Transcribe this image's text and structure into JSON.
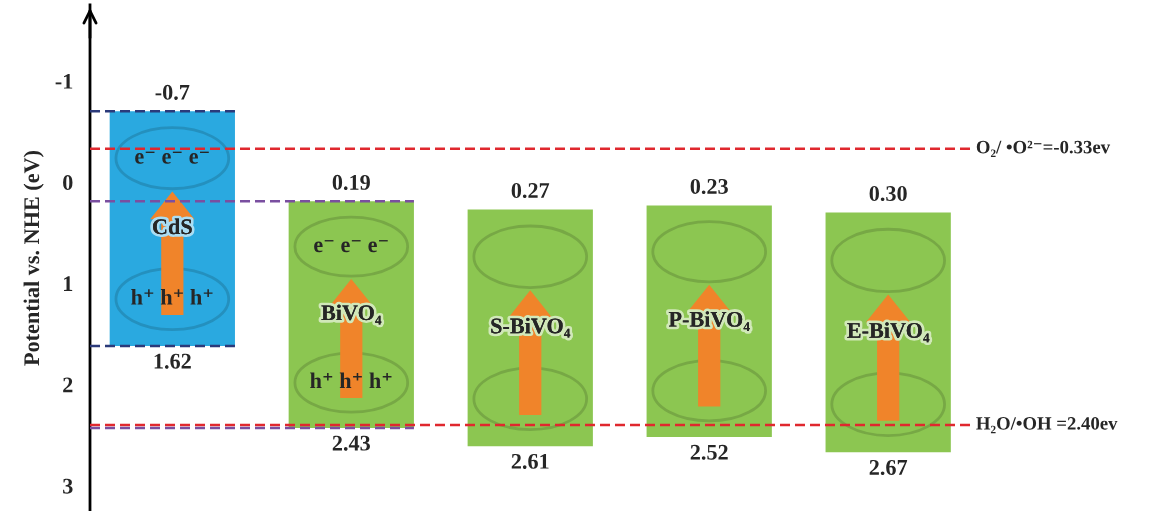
{
  "chart_data": {
    "type": "bar",
    "ylabel": "Potential vs. NHE (eV)",
    "categories": [
      "CdS",
      "BiVO₄",
      "S-BiVO₄",
      "P-BiVO₄",
      "E-BiVO₄"
    ],
    "base": [
      -0.7,
      0.19,
      0.27,
      0.23,
      0.3
    ],
    "values": [
      2.32,
      2.24,
      2.34,
      2.29,
      2.37
    ],
    "colors": [
      "#2aa9e0",
      "#8cc651",
      "#8cc651",
      "#8cc651",
      "#8cc651"
    ],
    "ylim": [
      3.25,
      -1.75
    ],
    "yticks": [
      -1,
      0,
      1,
      2,
      3
    ],
    "ref_lines": [
      {
        "axis": "y",
        "value": -0.33,
        "label": "O₂/ •O²⁻=-0.33ev",
        "color": "#e0282e",
        "line_style": "dashed"
      },
      {
        "axis": "y",
        "value": 2.4,
        "label": "H₂O/•OH =2.40ev",
        "color": "#e0282e",
        "line_style": "dashed"
      },
      {
        "axis": "y",
        "value": -0.7,
        "color": "#2b3a7a",
        "line_style": "dashed"
      },
      {
        "axis": "y",
        "value": 1.62,
        "color": "#2b3a7a",
        "line_style": "dashed"
      },
      {
        "axis": "y",
        "value": 0.19,
        "color": "#7a4fa0",
        "line_style": "dashed"
      },
      {
        "axis": "y",
        "value": 2.43,
        "color": "#7a4fa0",
        "line_style": "dashed"
      }
    ],
    "annotations": [
      {
        "text": "-0.7",
        "x": "CdS",
        "y": -0.7
      },
      {
        "text": "1.62",
        "x": "CdS",
        "y": 1.62
      },
      {
        "text": "0.19",
        "x": "BiVO₄",
        "y": 0.19
      },
      {
        "text": "2.43",
        "x": "BiVO₄",
        "y": 2.43
      },
      {
        "text": "0.27",
        "x": "S-BiVO₄",
        "y": 0.27
      },
      {
        "text": "2.61",
        "x": "S-BiVO₄",
        "y": 2.61
      },
      {
        "text": "0.23",
        "x": "P-BiVO₄",
        "y": 0.23
      },
      {
        "text": "2.52",
        "x": "P-BiVO₄",
        "y": 2.52
      },
      {
        "text": "0.30",
        "x": "E-BiVO₄",
        "y": 0.3
      },
      {
        "text": "2.67",
        "x": "E-BiVO₄",
        "y": 2.67
      },
      "e⁻ e⁻ e⁻",
      "h⁺ h⁺ h⁺",
      "e⁻ e⁻ e⁻",
      "h⁺ h⁺ h⁺"
    ]
  }
}
